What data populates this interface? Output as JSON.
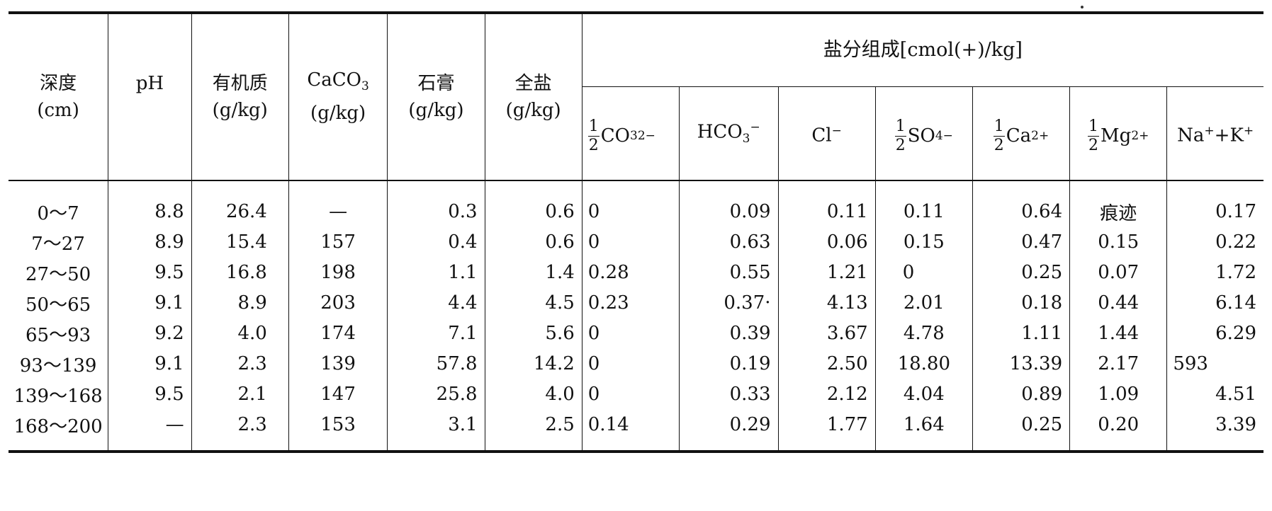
{
  "table": {
    "headers": {
      "depth": "深度",
      "depth_unit": "(cm)",
      "ph": "pH",
      "om": "有机质",
      "om_unit": "(g/kg)",
      "caco3": "CaCO",
      "caco3_sub": "3",
      "caco3_unit": "(g/kg)",
      "gypsum": "石膏",
      "gypsum_unit": "(g/kg)",
      "total_salt": "全盐",
      "total_salt_unit": "(g/kg)",
      "salt_group": "盐分组成[cmol(+)/kg]",
      "ions": {
        "co3_num": "1",
        "co3_den": "2",
        "co3_base": "CO",
        "co3_sub": "3",
        "co3_sup": "2−",
        "hco3_base": "HCO",
        "hco3_sub": "3",
        "hco3_sup": "−",
        "cl_base": "Cl",
        "cl_sup": "−",
        "so4_num": "1",
        "so4_den": "2",
        "so4_base": "SO",
        "so4_sub": "4",
        "so4_sup": "−",
        "ca_num": "1",
        "ca_den": "2",
        "ca_base": "Ca",
        "ca_sup": "2+",
        "mg_num": "1",
        "mg_den": "2",
        "mg_base": "Mg",
        "mg_sup": "2+",
        "nak_na": "Na",
        "nak_na_sup": "+",
        "nak_plus": "+K",
        "nak_k_sup": "+"
      }
    },
    "rows": [
      [
        "0～7",
        "8.8",
        "26.4",
        "—",
        "0.3",
        "0.6",
        "0",
        "0.09",
        "0.11",
        "0.11",
        "0.64",
        "痕迹",
        "0.17"
      ],
      [
        "7～27",
        "8.9",
        "15.4",
        "157",
        "0.4",
        "0.6",
        "0",
        "0.63",
        "0.06",
        "0.15",
        "0.47",
        "0.15",
        "0.22"
      ],
      [
        "27～50",
        "9.5",
        "16.8",
        "198",
        "1.1",
        "1.4",
        "0.28",
        "0.55",
        "1.21",
        "0",
        "0.25",
        "0.07",
        "1.72"
      ],
      [
        "50～65",
        "9.1",
        "8.9",
        "203",
        "4.4",
        "4.5",
        "0.23",
        "0.37·",
        "4.13",
        "2.01",
        "0.18",
        "0.44",
        "6.14"
      ],
      [
        "65～93",
        "9.2",
        "4.0",
        "174",
        "7.1",
        "5.6",
        "0",
        "0.39",
        "3.67",
        "4.78",
        "1.11",
        "1.44",
        "6.29"
      ],
      [
        "93～139",
        "9.1",
        "2.3",
        "139",
        "57.8",
        "14.2",
        "0",
        "0.19",
        "2.50",
        "18.80",
        "13.39",
        "2.17",
        "593"
      ],
      [
        "139～168",
        "9.5",
        "2.1",
        "147",
        "25.8",
        "4.0",
        "0",
        "0.33",
        "2.12",
        "4.04",
        "0.89",
        "1.09",
        "4.51"
      ],
      [
        "168～200",
        "—",
        "2.3",
        "153",
        "3.1",
        "2.5",
        "0.14",
        "0.29",
        "1.77",
        "1.64",
        "0.25",
        "0.20",
        "3.39"
      ]
    ]
  }
}
